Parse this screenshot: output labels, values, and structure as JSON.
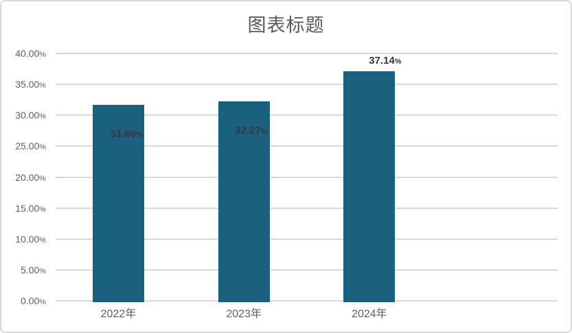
{
  "chart_data": {
    "type": "bar",
    "title": "图表标题",
    "categories": [
      "2022年",
      "2023年",
      "2024年"
    ],
    "values": [
      31.66,
      32.27,
      37.14
    ],
    "data_labels": [
      "31.66%",
      "32.27%",
      "37.14%"
    ],
    "label_placement": [
      "inside",
      "inside",
      "outside"
    ],
    "ylim": [
      0,
      40
    ],
    "ytick_step": 5,
    "ytick_labels": [
      "0.00%",
      "5.00%",
      "10.00%",
      "15.00%",
      "20.00%",
      "25.00%",
      "30.00%",
      "35.00%",
      "40.00%"
    ],
    "xlabel": "",
    "ylabel": "",
    "grid": true,
    "legend": "none",
    "colors": {
      "bar": "#1B617F",
      "gridline": "#D9D9D9",
      "axis_text": "#5F5F5F",
      "title_text": "#595959",
      "data_label_text": "#383838",
      "border": "#D8D8D8",
      "background": "#FFFFFF"
    }
  }
}
